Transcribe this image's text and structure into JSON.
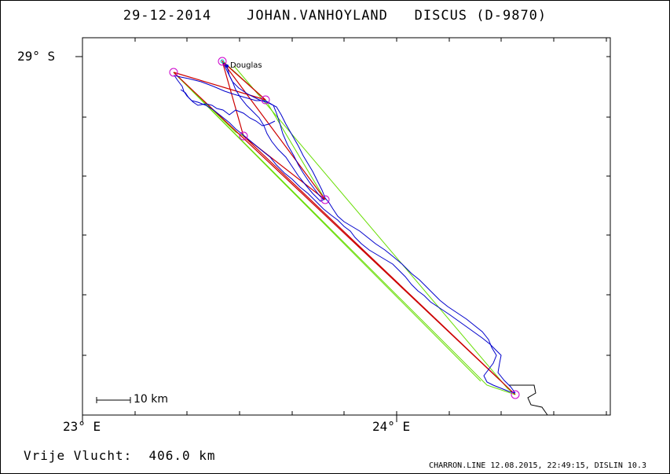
{
  "header": {
    "date": "29-12-2014",
    "pilot": "JOHAN.VANHOYLAND",
    "glider": "DISCUS (D-9870)"
  },
  "axes": {
    "lat_label": "29° S",
    "lon_left_label": "23° E",
    "lon_right_label": "24° E"
  },
  "map": {
    "town": "Douglas",
    "scale_label": "10 km",
    "colors": {
      "track": "#0000cc",
      "task": "#cc0000",
      "sector": "#66dd00",
      "turnpoint": "#cc00cc",
      "start": "#00cccc",
      "border": "#000000"
    }
  },
  "summary": {
    "distance": "Vrije Vlucht:  406.0 km"
  },
  "footer": {
    "text": "CHARRON.LINE 12.08.2015, 22:49:15, DISLIN 10.3"
  }
}
